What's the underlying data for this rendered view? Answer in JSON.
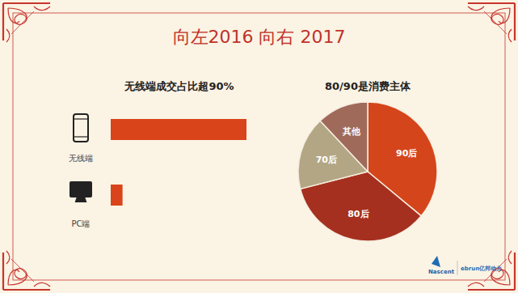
{
  "title": "向左2016 向右 2017",
  "chart_data": [
    {
      "type": "bar",
      "title": "无线端成交占比超90%",
      "orientation": "horizontal",
      "categories": [
        "无线端",
        "PC端"
      ],
      "values": [
        92,
        8
      ],
      "color": "#d9441a",
      "tick_labels": "y",
      "grid": false
    },
    {
      "type": "pie",
      "title": "80/90是消费主体",
      "categories": [
        "90后",
        "80后",
        "70后",
        "其他"
      ],
      "values": [
        36,
        35,
        17,
        12
      ],
      "colors": [
        "#d5451b",
        "#a6301f",
        "#b3a684",
        "#a06a5b"
      ],
      "data_labels": false
    }
  ],
  "footer": {
    "logos": [
      "Nascent",
      "ebrun亿邦动力"
    ]
  }
}
